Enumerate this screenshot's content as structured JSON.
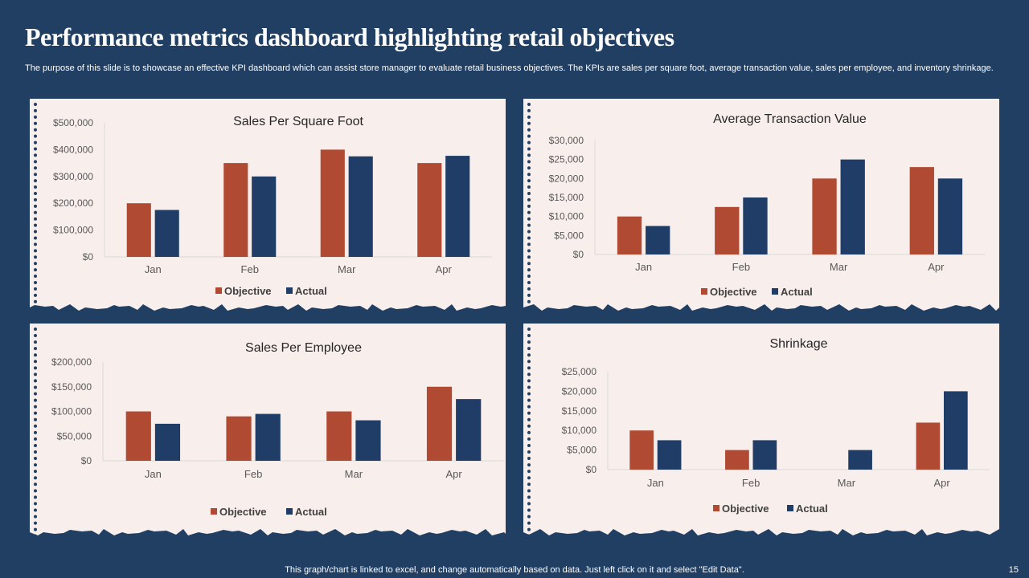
{
  "page": {
    "title": "Performance metrics dashboard highlighting retail objectives",
    "subtitle": "The purpose of this slide is to showcase an effective KPI dashboard which can assist store manager to evaluate retail business objectives. The KPIs are sales per square foot, average transaction value, sales per employee, and inventory shrinkage.",
    "footer": "This graph/chart is linked to excel,  and change automatically based on data. Just left click on it and select \"Edit Data\".",
    "page_number": "15"
  },
  "colors": {
    "background": "#213f63",
    "card": "#f8eeeb",
    "objective": "#b04a33",
    "actual": "#1f3d66",
    "axis_text": "#595959",
    "title_text": "#262626"
  },
  "chart_data": [
    {
      "type": "bar",
      "title": "Sales Per Square Foot",
      "categories": [
        "Jan",
        "Feb",
        "Mar",
        "Apr"
      ],
      "series": [
        {
          "name": "Objective",
          "values": [
            200000,
            350000,
            400000,
            350000
          ]
        },
        {
          "name": "Actual",
          "values": [
            175000,
            300000,
            375000,
            377000
          ]
        }
      ],
      "ylim": [
        0,
        500000
      ],
      "yticks": [
        "$0",
        "$100,000",
        "$200,000",
        "$300,000",
        "$400,000",
        "$500,000"
      ],
      "xlabel": "",
      "ylabel": "",
      "legend": "bottom"
    },
    {
      "type": "bar",
      "title": "Average Transaction  Value",
      "categories": [
        "Jan",
        "Feb",
        "Mar",
        "Apr"
      ],
      "series": [
        {
          "name": "Objective",
          "values": [
            10000,
            12500,
            20000,
            23000
          ]
        },
        {
          "name": "Actual",
          "values": [
            7500,
            15000,
            25000,
            20000
          ]
        }
      ],
      "ylim": [
        0,
        30000
      ],
      "yticks": [
        "$0",
        "$5,000",
        "$10,000",
        "$15,000",
        "$20,000",
        "$25,000",
        "$30,000"
      ],
      "xlabel": "",
      "ylabel": "",
      "legend": "bottom"
    },
    {
      "type": "bar",
      "title": "Sales Per Employee",
      "categories": [
        "Jan",
        "Feb",
        "Mar",
        "Apr"
      ],
      "series": [
        {
          "name": "Objective",
          "values": [
            100000,
            90000,
            100000,
            150000
          ]
        },
        {
          "name": "Actual",
          "values": [
            75000,
            95000,
            82000,
            125000
          ]
        }
      ],
      "ylim": [
        0,
        200000
      ],
      "yticks": [
        "$0",
        "$50,000",
        "$100,000",
        "$150,000",
        "$200,000"
      ],
      "xlabel": "",
      "ylabel": "",
      "legend": "bottom"
    },
    {
      "type": "bar",
      "title": "Shrinkage",
      "categories": [
        "Jan",
        "Feb",
        "Mar",
        "Apr"
      ],
      "series": [
        {
          "name": "Objective",
          "values": [
            10000,
            5000,
            0,
            12000
          ]
        },
        {
          "name": "Actual",
          "values": [
            7500,
            7500,
            5000,
            20000
          ]
        }
      ],
      "ylim": [
        0,
        25000
      ],
      "yticks": [
        "$0",
        "$5,000",
        "$10,000",
        "$15,000",
        "$20,000",
        "$25,000"
      ],
      "xlabel": "",
      "ylabel": "",
      "legend": "bottom"
    }
  ]
}
